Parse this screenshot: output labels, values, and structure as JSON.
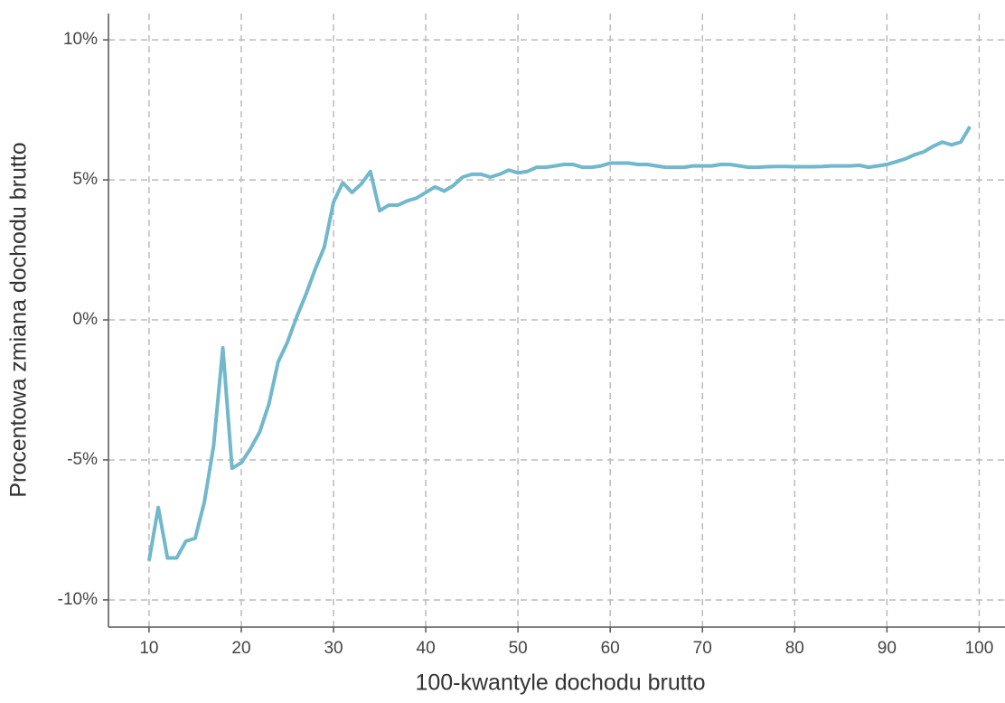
{
  "chart_data": {
    "type": "line",
    "xlabel": "100-kwantyle dochodu brutto",
    "ylabel": "Procentowa zmiana dochodu brutto",
    "x": [
      10,
      11,
      12,
      13,
      14,
      15,
      16,
      17,
      18,
      19,
      20,
      21,
      22,
      23,
      24,
      25,
      26,
      27,
      28,
      29,
      30,
      31,
      32,
      33,
      34,
      35,
      36,
      37,
      38,
      39,
      40,
      41,
      42,
      43,
      44,
      45,
      46,
      47,
      48,
      49,
      50,
      51,
      52,
      53,
      54,
      55,
      56,
      57,
      58,
      59,
      60,
      61,
      62,
      63,
      64,
      65,
      66,
      67,
      68,
      69,
      70,
      71,
      72,
      73,
      74,
      75,
      76,
      77,
      78,
      79,
      80,
      81,
      82,
      83,
      84,
      85,
      86,
      87,
      88,
      89,
      90,
      91,
      92,
      93,
      94,
      95,
      96,
      97,
      98,
      99
    ],
    "series": [
      {
        "color": "#72b8cc",
        "values": [
          -8.6,
          -6.7,
          -8.5,
          -8.5,
          -7.9,
          -7.8,
          -6.5,
          -4.5,
          -1.0,
          -5.3,
          -5.1,
          -4.6,
          -4.0,
          -3.0,
          -1.5,
          -0.8,
          0.1,
          0.9,
          1.8,
          2.6,
          4.2,
          4.9,
          4.55,
          4.85,
          5.3,
          3.9,
          4.1,
          4.1,
          4.25,
          4.35,
          4.55,
          4.75,
          4.6,
          4.8,
          5.1,
          5.2,
          5.2,
          5.1,
          5.2,
          5.35,
          5.25,
          5.3,
          5.45,
          5.45,
          5.5,
          5.55,
          5.55,
          5.45,
          5.45,
          5.5,
          5.6,
          5.6,
          5.6,
          5.55,
          5.55,
          5.5,
          5.45,
          5.45,
          5.45,
          5.5,
          5.5,
          5.5,
          5.55,
          5.55,
          5.5,
          5.45,
          5.45,
          5.47,
          5.48,
          5.48,
          5.47,
          5.47,
          5.47,
          5.48,
          5.5,
          5.5,
          5.5,
          5.52,
          5.45,
          5.5,
          5.55,
          5.65,
          5.75,
          5.9,
          6.0,
          6.2,
          6.35,
          6.25,
          6.35,
          6.9
        ]
      }
    ],
    "xlim": [
      5.6,
      102.8
    ],
    "ylim": [
      -10.97,
      10.94
    ],
    "xticks": [
      10,
      20,
      30,
      40,
      50,
      60,
      70,
      80,
      90,
      100
    ],
    "yticks": [
      {
        "value": -10,
        "label": "-10%"
      },
      {
        "value": -5,
        "label": "-5%"
      },
      {
        "value": 0,
        "label": "0%"
      },
      {
        "value": 5,
        "label": "5%"
      },
      {
        "value": 10,
        "label": "10%"
      }
    ],
    "grid": true
  }
}
